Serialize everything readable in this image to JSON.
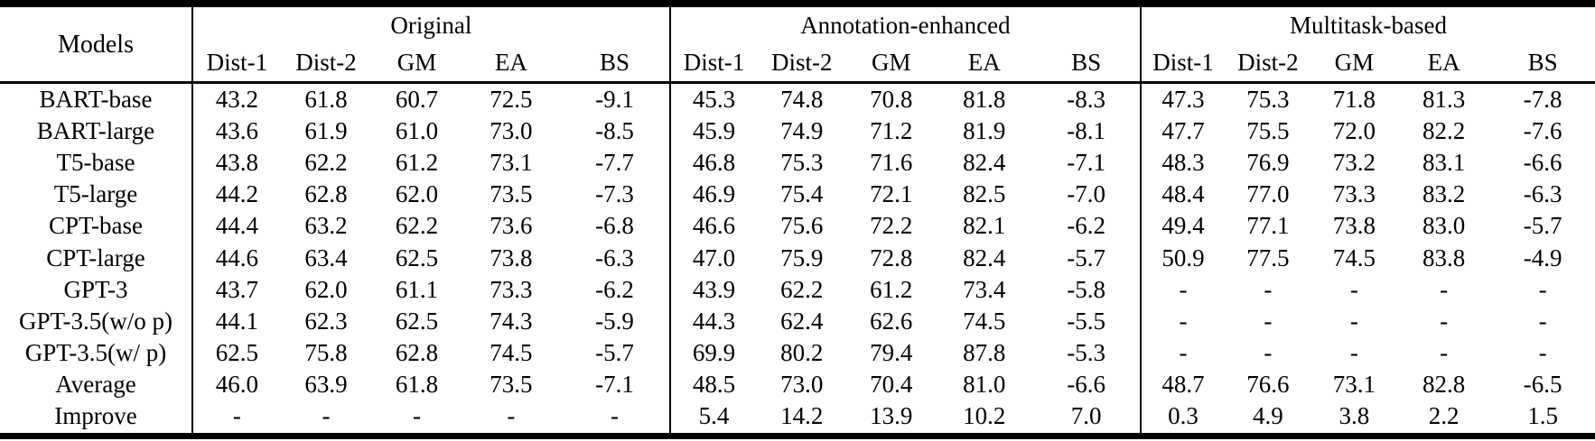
{
  "table": {
    "models_header": "Models",
    "groups": [
      {
        "key": "original",
        "label": "Original",
        "columns": [
          "Dist-1",
          "Dist-2",
          "GM",
          "EA",
          "BS"
        ]
      },
      {
        "key": "annotation",
        "label": "Annotation-enhanced",
        "columns": [
          "Dist-1",
          "Dist-2",
          "GM",
          "EA",
          "BS"
        ]
      },
      {
        "key": "multitask",
        "label": "Multitask-based",
        "columns": [
          "Dist-1",
          "Dist-2",
          "GM",
          "EA",
          "BS"
        ]
      }
    ],
    "rows": [
      {
        "model": "BART-base",
        "original": [
          "43.2",
          "61.8",
          "60.7",
          "72.5",
          "-9.1"
        ],
        "annotation": [
          "45.3",
          "74.8",
          "70.8",
          "81.8",
          "-8.3"
        ],
        "multitask": [
          "47.3",
          "75.3",
          "71.8",
          "81.3",
          "-7.8"
        ]
      },
      {
        "model": "BART-large",
        "original": [
          "43.6",
          "61.9",
          "61.0",
          "73.0",
          "-8.5"
        ],
        "annotation": [
          "45.9",
          "74.9",
          "71.2",
          "81.9",
          "-8.1"
        ],
        "multitask": [
          "47.7",
          "75.5",
          "72.0",
          "82.2",
          "-7.6"
        ]
      },
      {
        "model": "T5-base",
        "original": [
          "43.8",
          "62.2",
          "61.2",
          "73.1",
          "-7.7"
        ],
        "annotation": [
          "46.8",
          "75.3",
          "71.6",
          "82.4",
          "-7.1"
        ],
        "multitask": [
          "48.3",
          "76.9",
          "73.2",
          "83.1",
          "-6.6"
        ]
      },
      {
        "model": "T5-large",
        "original": [
          "44.2",
          "62.8",
          "62.0",
          "73.5",
          "-7.3"
        ],
        "annotation": [
          "46.9",
          "75.4",
          "72.1",
          "82.5",
          "-7.0"
        ],
        "multitask": [
          "48.4",
          "77.0",
          "73.3",
          "83.2",
          "-6.3"
        ]
      },
      {
        "model": "CPT-base",
        "original": [
          "44.4",
          "63.2",
          "62.2",
          "73.6",
          "-6.8"
        ],
        "annotation": [
          "46.6",
          "75.6",
          "72.2",
          "82.1",
          "-6.2"
        ],
        "multitask": [
          "49.4",
          "77.1",
          "73.8",
          "83.0",
          "-5.7"
        ]
      },
      {
        "model": "CPT-large",
        "original": [
          "44.6",
          "63.4",
          "62.5",
          "73.8",
          "-6.3"
        ],
        "annotation": [
          "47.0",
          "75.9",
          "72.8",
          "82.4",
          "-5.7"
        ],
        "multitask": [
          "50.9",
          "77.5",
          "74.5",
          "83.8",
          "-4.9"
        ]
      },
      {
        "model": "GPT-3",
        "original": [
          "43.7",
          "62.0",
          "61.1",
          "73.3",
          "-6.2"
        ],
        "annotation": [
          "43.9",
          "62.2",
          "61.2",
          "73.4",
          "-5.8"
        ],
        "multitask": [
          "-",
          "-",
          "-",
          "-",
          "-"
        ]
      },
      {
        "model": "GPT-3.5(w/o p)",
        "original": [
          "44.1",
          "62.3",
          "62.5",
          "74.3",
          "-5.9"
        ],
        "annotation": [
          "44.3",
          "62.4",
          "62.6",
          "74.5",
          "-5.5"
        ],
        "multitask": [
          "-",
          "-",
          "-",
          "-",
          "-"
        ]
      },
      {
        "model": "GPT-3.5(w/ p)",
        "original": [
          "62.5",
          "75.8",
          "62.8",
          "74.5",
          "-5.7"
        ],
        "annotation": [
          "69.9",
          "80.2",
          "79.4",
          "87.8",
          "-5.3"
        ],
        "multitask": [
          "-",
          "-",
          "-",
          "-",
          "-"
        ]
      },
      {
        "model": "Average",
        "original": [
          "46.0",
          "63.9",
          "61.8",
          "73.5",
          "-7.1"
        ],
        "annotation": [
          "48.5",
          "73.0",
          "70.4",
          "81.0",
          "-6.6"
        ],
        "multitask": [
          "48.7",
          "76.6",
          "73.1",
          "82.8",
          "-6.5"
        ]
      },
      {
        "model": "Improve",
        "original": [
          "-",
          "-",
          "-",
          "-",
          "-"
        ],
        "annotation": [
          "5.4",
          "14.2",
          "13.9",
          "10.2",
          "7.0"
        ],
        "multitask": [
          "0.3",
          "4.9",
          "3.8",
          "2.2",
          "1.5"
        ]
      }
    ]
  }
}
